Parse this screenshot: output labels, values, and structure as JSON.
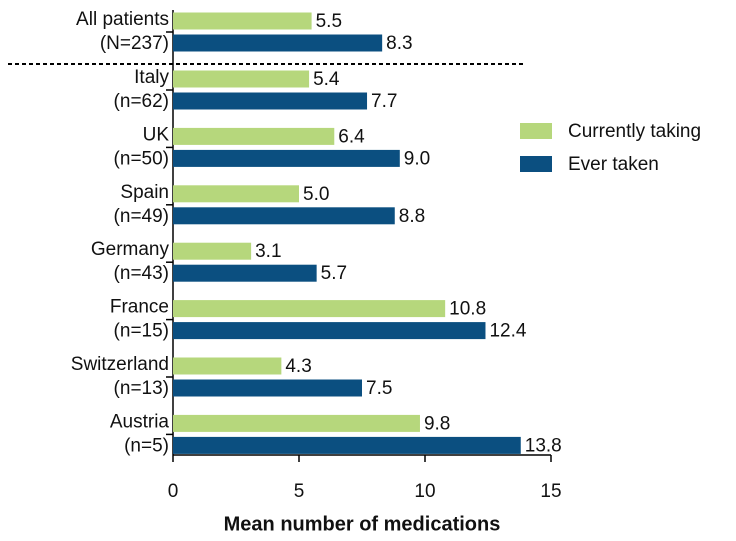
{
  "chart_data": {
    "type": "bar",
    "orientation": "horizontal",
    "xlabel": "Mean number of medications",
    "categories": [
      [
        "All patients",
        "(N=237)"
      ],
      [
        "Italy",
        "(n=62)"
      ],
      [
        "UK",
        "(n=50)"
      ],
      [
        "Spain",
        "(n=49)"
      ],
      [
        "Germany",
        "(n=43)"
      ],
      [
        "France",
        "(n=15)"
      ],
      [
        "Switzerland",
        "(n=13)"
      ],
      [
        "Austria",
        "(n=5)"
      ]
    ],
    "series": [
      {
        "name": "Currently taking",
        "color": "#b6d77c",
        "values": [
          5.5,
          5.4,
          6.4,
          5,
          3.1,
          10.8,
          4.3,
          9.8
        ],
        "value_labels": [
          "5.5",
          "5.4",
          "6.4",
          "5.0",
          "3.1",
          "10.8",
          "4.3",
          "9.8"
        ]
      },
      {
        "name": "Ever taken",
        "color": "#0b4f80",
        "values": [
          8.3,
          7.7,
          9,
          8.8,
          5.7,
          12.4,
          7.5,
          13.8
        ],
        "value_labels": [
          "8.3",
          "7.7",
          "9.0",
          "8.8",
          "5.7",
          "12.4",
          "7.5",
          "13.8"
        ]
      }
    ],
    "xlim": [
      0,
      15
    ],
    "xticks": [
      0,
      5,
      10,
      15
    ],
    "legend": "right"
  }
}
